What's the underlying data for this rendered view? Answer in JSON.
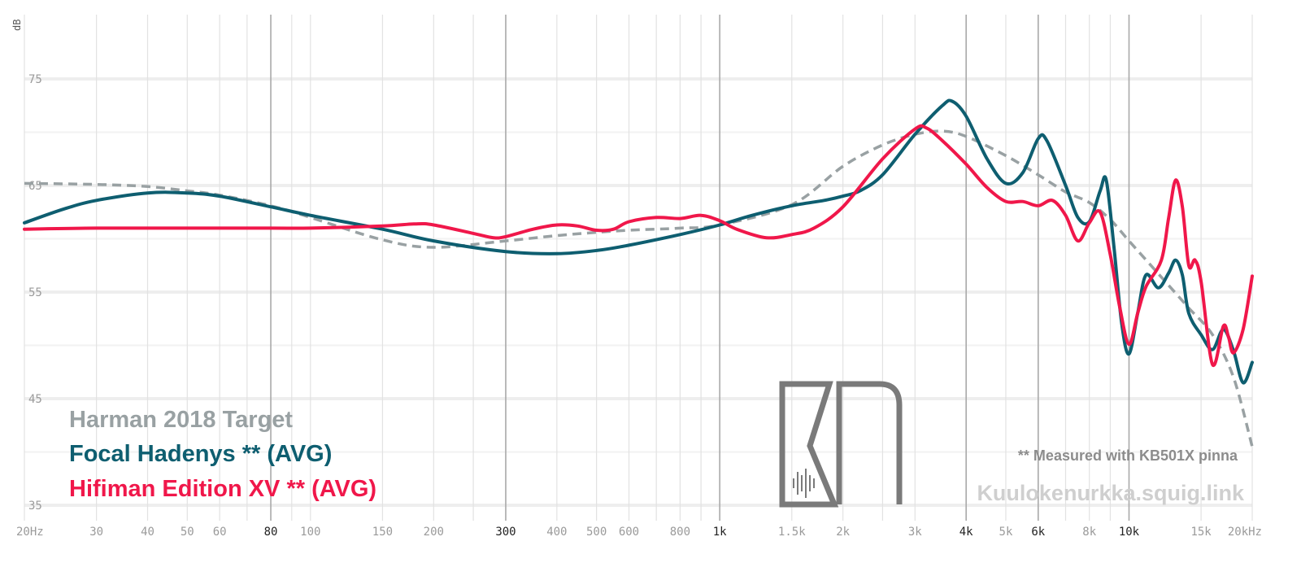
{
  "chart_data": {
    "type": "line",
    "ylabel": "dB",
    "xlim": [
      20,
      20000
    ],
    "ylim": [
      35,
      79
    ],
    "x_scale": "log",
    "grid": true,
    "y_ticks": [
      {
        "value": 35,
        "label": "35"
      },
      {
        "value": 45,
        "label": "45"
      },
      {
        "value": 55,
        "label": "55"
      },
      {
        "value": 65,
        "label": "65"
      },
      {
        "value": 75,
        "label": "75"
      }
    ],
    "x_ticks": [
      {
        "value": 20,
        "label": "20Hz",
        "major": false
      },
      {
        "value": 30,
        "label": "30",
        "major": false
      },
      {
        "value": 40,
        "label": "40",
        "major": false
      },
      {
        "value": 50,
        "label": "50",
        "major": false
      },
      {
        "value": 60,
        "label": "60",
        "major": false
      },
      {
        "value": 80,
        "label": "80",
        "major": true
      },
      {
        "value": 100,
        "label": "100",
        "major": false
      },
      {
        "value": 150,
        "label": "150",
        "major": false
      },
      {
        "value": 200,
        "label": "200",
        "major": false
      },
      {
        "value": 300,
        "label": "300",
        "major": true
      },
      {
        "value": 400,
        "label": "400",
        "major": false
      },
      {
        "value": 500,
        "label": "500",
        "major": false
      },
      {
        "value": 600,
        "label": "600",
        "major": false
      },
      {
        "value": 800,
        "label": "800",
        "major": false
      },
      {
        "value": 1000,
        "label": "1k",
        "major": true
      },
      {
        "value": 1500,
        "label": "1.5k",
        "major": false
      },
      {
        "value": 2000,
        "label": "2k",
        "major": false
      },
      {
        "value": 3000,
        "label": "3k",
        "major": false
      },
      {
        "value": 4000,
        "label": "4k",
        "major": true
      },
      {
        "value": 5000,
        "label": "5k",
        "major": false
      },
      {
        "value": 6000,
        "label": "6k",
        "major": true
      },
      {
        "value": 8000,
        "label": "8k",
        "major": false
      },
      {
        "value": 10000,
        "label": "10k",
        "major": true
      },
      {
        "value": 15000,
        "label": "15k",
        "major": false
      },
      {
        "value": 20000,
        "label": "20kHz",
        "major": false
      }
    ],
    "series": [
      {
        "name": "Harman 2018 Target",
        "color": "#99a1a3",
        "dashed": true,
        "points": [
          [
            20,
            65.2
          ],
          [
            30,
            65.1
          ],
          [
            40,
            64.9
          ],
          [
            50,
            64.5
          ],
          [
            60,
            64.1
          ],
          [
            80,
            63.1
          ],
          [
            100,
            62.0
          ],
          [
            150,
            59.9
          ],
          [
            200,
            59.2
          ],
          [
            300,
            59.8
          ],
          [
            400,
            60.3
          ],
          [
            500,
            60.6
          ],
          [
            600,
            60.8
          ],
          [
            800,
            61.0
          ],
          [
            1000,
            61.3
          ],
          [
            1500,
            63.2
          ],
          [
            2000,
            66.8
          ],
          [
            2500,
            68.8
          ],
          [
            3000,
            69.8
          ],
          [
            3500,
            70.1
          ],
          [
            4000,
            69.6
          ],
          [
            5000,
            67.8
          ],
          [
            6000,
            66.0
          ],
          [
            7000,
            64.4
          ],
          [
            8000,
            63.4
          ],
          [
            9000,
            61.8
          ],
          [
            10000,
            59.8
          ],
          [
            12000,
            56.4
          ],
          [
            14000,
            53.5
          ],
          [
            16000,
            51.0
          ],
          [
            18000,
            47.0
          ],
          [
            20000,
            40.5
          ]
        ]
      },
      {
        "name": "Focal Hadenys ** (AVG)",
        "color": "#0e5e70",
        "dashed": false,
        "points": [
          [
            20,
            61.5
          ],
          [
            25,
            62.8
          ],
          [
            30,
            63.6
          ],
          [
            40,
            64.3
          ],
          [
            50,
            64.3
          ],
          [
            60,
            64.0
          ],
          [
            80,
            63.0
          ],
          [
            100,
            62.2
          ],
          [
            150,
            60.9
          ],
          [
            200,
            59.8
          ],
          [
            300,
            58.8
          ],
          [
            400,
            58.6
          ],
          [
            500,
            58.9
          ],
          [
            600,
            59.4
          ],
          [
            800,
            60.4
          ],
          [
            1000,
            61.3
          ],
          [
            1200,
            62.2
          ],
          [
            1500,
            63.1
          ],
          [
            1800,
            63.6
          ],
          [
            2000,
            64.0
          ],
          [
            2200,
            64.5
          ],
          [
            2500,
            66.0
          ],
          [
            3000,
            69.8
          ],
          [
            3500,
            72.5
          ],
          [
            3700,
            72.9
          ],
          [
            4000,
            71.5
          ],
          [
            4500,
            67.5
          ],
          [
            5000,
            65.2
          ],
          [
            5500,
            66.2
          ],
          [
            6000,
            69.4
          ],
          [
            6300,
            69.2
          ],
          [
            7000,
            65.0
          ],
          [
            7500,
            62.0
          ],
          [
            8000,
            61.6
          ],
          [
            8500,
            64.5
          ],
          [
            8800,
            65.5
          ],
          [
            9200,
            59.0
          ],
          [
            9600,
            52.0
          ],
          [
            10000,
            49.2
          ],
          [
            10500,
            53.0
          ],
          [
            11000,
            56.6
          ],
          [
            11800,
            55.4
          ],
          [
            12500,
            56.8
          ],
          [
            13000,
            58.0
          ],
          [
            13500,
            56.6
          ],
          [
            14000,
            53.0
          ],
          [
            15000,
            51.0
          ],
          [
            16000,
            49.6
          ],
          [
            17000,
            51.5
          ],
          [
            18000,
            49.5
          ],
          [
            19000,
            46.5
          ],
          [
            20000,
            48.4
          ]
        ]
      },
      {
        "name": "Hifiman Edition XV ** (AVG)",
        "color": "#f0174a",
        "dashed": false,
        "points": [
          [
            20,
            60.9
          ],
          [
            30,
            61.0
          ],
          [
            50,
            61.0
          ],
          [
            80,
            61.0
          ],
          [
            100,
            61.0
          ],
          [
            150,
            61.2
          ],
          [
            180,
            61.4
          ],
          [
            200,
            61.3
          ],
          [
            250,
            60.5
          ],
          [
            280,
            60.1
          ],
          [
            300,
            60.2
          ],
          [
            350,
            60.9
          ],
          [
            400,
            61.3
          ],
          [
            450,
            61.2
          ],
          [
            500,
            60.8
          ],
          [
            550,
            60.9
          ],
          [
            600,
            61.6
          ],
          [
            700,
            62.0
          ],
          [
            800,
            61.9
          ],
          [
            900,
            62.2
          ],
          [
            1000,
            61.7
          ],
          [
            1100,
            60.9
          ],
          [
            1300,
            60.1
          ],
          [
            1500,
            60.4
          ],
          [
            1700,
            61.0
          ],
          [
            2000,
            63.0
          ],
          [
            2500,
            67.5
          ],
          [
            3000,
            70.3
          ],
          [
            3200,
            70.4
          ],
          [
            3500,
            69.2
          ],
          [
            4000,
            67.0
          ],
          [
            4500,
            64.8
          ],
          [
            5000,
            63.5
          ],
          [
            5500,
            63.5
          ],
          [
            6000,
            63.1
          ],
          [
            6500,
            63.6
          ],
          [
            7000,
            62.2
          ],
          [
            7500,
            59.8
          ],
          [
            8000,
            61.5
          ],
          [
            8500,
            62.5
          ],
          [
            9000,
            58.5
          ],
          [
            9500,
            53.5
          ],
          [
            10000,
            50.1
          ],
          [
            10500,
            53.0
          ],
          [
            11000,
            55.5
          ],
          [
            12000,
            58.0
          ],
          [
            12500,
            62.0
          ],
          [
            13000,
            65.5
          ],
          [
            13500,
            63.0
          ],
          [
            14000,
            57.5
          ],
          [
            14500,
            58.0
          ],
          [
            15000,
            56.0
          ],
          [
            16000,
            48.2
          ],
          [
            17000,
            51.8
          ],
          [
            17500,
            50.8
          ],
          [
            18000,
            49.3
          ],
          [
            19000,
            51.5
          ],
          [
            20000,
            56.5
          ]
        ]
      }
    ],
    "legend": {
      "placement": "bottom-left",
      "entries": [
        "Harman 2018 Target",
        "Focal Hadenys ** (AVG)",
        "Hifiman Edition XV ** (AVG)"
      ]
    },
    "note": "** Measured with KB501X pinna",
    "watermark": "Kuulokenurkka.squig.link"
  }
}
